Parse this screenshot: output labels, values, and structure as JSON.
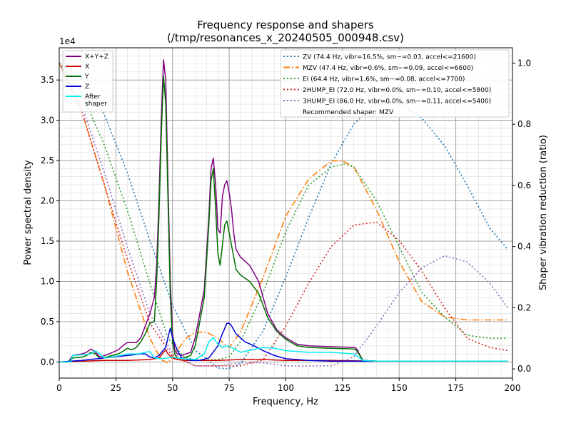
{
  "chart_data": {
    "type": "line",
    "title": "Frequency response and shapers",
    "subtitle": "(/tmp/resonances_x_20240505_000948.csv)",
    "xlabel": "Frequency, Hz",
    "ylabel": "Power spectral density",
    "y2label": "Shaper vibration reduction (ratio)",
    "y_offset_text": "1e4",
    "xlim": [
      0,
      200
    ],
    "ylim": [
      -0.2,
      3.9
    ],
    "y2lim": [
      -0.03,
      1.05
    ],
    "grid": true,
    "x_ticks": [
      0,
      25,
      50,
      75,
      100,
      125,
      150,
      175,
      200
    ],
    "y_ticks": [
      0.0,
      0.5,
      1.0,
      1.5,
      2.0,
      2.5,
      3.0,
      3.5
    ],
    "y2_ticks": [
      0.0,
      0.2,
      0.4,
      0.6,
      0.8,
      1.0
    ],
    "legend_left": {
      "placement": "top-left",
      "entries": [
        "X+Y+Z",
        "X",
        "Y",
        "Z",
        "After\nshaper"
      ]
    },
    "legend_right": {
      "placement": "top-right",
      "entries": [
        "ZV (74.4 Hz, vibr=16.5%, sm~=0.03, accel<=21600)",
        "MZV (47.4 Hz, vibr=0.6%, sm~=0.09, accel<=6600)",
        "EI (64.4 Hz, vibr=1.6%, sm~=0.08, accel<=7700)",
        "2HUMP_EI (72.0 Hz, vibr=0.0%, sm~=0.10, accel<=5800)",
        "3HUMP_EI (86.0 Hz, vibr=0.0%, sm~=0.11, accel<=5400)"
      ],
      "note": "Recommended shaper: MZV"
    },
    "colors": {
      "xyz": "#800080",
      "x": "#cc0000",
      "y": "#007000",
      "z": "#0000dd",
      "after": "#00eeee",
      "zv": "#1f77b4",
      "mzv": "#ff7f0e",
      "ei": "#2ca02c",
      "hump2": "#d62728",
      "hump3": "#9467bd"
    },
    "series": [
      {
        "name": "X+Y+Z",
        "key": "xyz",
        "axis": "left",
        "style": "solid",
        "x": [
          0,
          4,
          6,
          10,
          12,
          14,
          16,
          18,
          22,
          26,
          28,
          30,
          32,
          34,
          36,
          38,
          40,
          42,
          43,
          44,
          45,
          46,
          47,
          48,
          49,
          50,
          51,
          52,
          54,
          56,
          58,
          60,
          62,
          64,
          66,
          67,
          68,
          69,
          70,
          71,
          72,
          73,
          74,
          75,
          76,
          77,
          78,
          80,
          84,
          88,
          92,
          96,
          100,
          105,
          110,
          120,
          130,
          131,
          134,
          140,
          160,
          180,
          198
        ],
        "y": [
          0.0,
          0.0,
          0.08,
          0.1,
          0.12,
          0.16,
          0.12,
          0.06,
          0.1,
          0.15,
          0.2,
          0.24,
          0.24,
          0.24,
          0.3,
          0.45,
          0.6,
          0.8,
          1.2,
          2.0,
          3.0,
          3.75,
          3.5,
          2.2,
          1.0,
          0.35,
          0.15,
          0.1,
          0.08,
          0.1,
          0.12,
          0.3,
          0.6,
          0.9,
          1.8,
          2.4,
          2.53,
          2.2,
          1.65,
          1.6,
          2.05,
          2.2,
          2.25,
          2.1,
          1.9,
          1.6,
          1.4,
          1.3,
          1.2,
          1.0,
          0.6,
          0.4,
          0.3,
          0.22,
          0.2,
          0.19,
          0.18,
          0.17,
          0.02,
          0.01,
          0.01,
          0.01,
          0.01
        ]
      },
      {
        "name": "X",
        "key": "x",
        "axis": "left",
        "style": "solid",
        "x": [
          0,
          10,
          20,
          30,
          40,
          44,
          46,
          47,
          48,
          50,
          52,
          55,
          60,
          70,
          80,
          90,
          100,
          120,
          140,
          160,
          198
        ],
        "y": [
          0.0,
          0.01,
          0.02,
          0.02,
          0.03,
          0.05,
          0.12,
          0.15,
          0.1,
          0.05,
          0.03,
          0.02,
          0.02,
          0.02,
          0.03,
          0.03,
          0.02,
          0.02,
          0.01,
          0.01,
          0.01
        ]
      },
      {
        "name": "Y",
        "key": "y",
        "axis": "left",
        "style": "solid",
        "x": [
          0,
          4,
          6,
          10,
          12,
          14,
          16,
          18,
          22,
          26,
          28,
          30,
          32,
          34,
          36,
          38,
          40,
          42,
          43,
          44,
          45,
          46,
          47,
          48,
          49,
          50,
          51,
          52,
          54,
          56,
          58,
          60,
          62,
          64,
          66,
          67,
          68,
          69,
          70,
          71,
          72,
          73,
          74,
          75,
          76,
          77,
          78,
          80,
          84,
          88,
          92,
          96,
          100,
          105,
          110,
          120,
          130,
          131,
          134,
          140,
          160,
          180,
          198
        ],
        "y": [
          0.0,
          0.0,
          0.05,
          0.06,
          0.08,
          0.12,
          0.1,
          0.04,
          0.07,
          0.1,
          0.13,
          0.17,
          0.15,
          0.18,
          0.25,
          0.35,
          0.48,
          0.5,
          1.0,
          1.8,
          2.8,
          3.55,
          3.2,
          2.0,
          0.8,
          0.25,
          0.1,
          0.05,
          0.04,
          0.06,
          0.08,
          0.2,
          0.5,
          0.8,
          1.7,
          2.25,
          2.4,
          1.9,
          1.35,
          1.2,
          1.45,
          1.7,
          1.75,
          1.6,
          1.45,
          1.3,
          1.15,
          1.08,
          1.0,
          0.85,
          0.55,
          0.38,
          0.28,
          0.2,
          0.18,
          0.17,
          0.16,
          0.15,
          0.02,
          0.01,
          0.01,
          0.01,
          0.01
        ]
      },
      {
        "name": "Z",
        "key": "z",
        "axis": "left",
        "style": "solid",
        "x": [
          0,
          10,
          20,
          30,
          36,
          38,
          40,
          42,
          44,
          46,
          47,
          48,
          49,
          50,
          52,
          54,
          58,
          62,
          66,
          70,
          72,
          74,
          75,
          76,
          78,
          82,
          86,
          90,
          95,
          100,
          110,
          120,
          130,
          140,
          160,
          198
        ],
        "y": [
          0.0,
          0.02,
          0.05,
          0.08,
          0.1,
          0.1,
          0.06,
          0.05,
          0.08,
          0.15,
          0.18,
          0.3,
          0.42,
          0.3,
          0.15,
          0.05,
          0.02,
          0.02,
          0.05,
          0.2,
          0.35,
          0.48,
          0.48,
          0.45,
          0.35,
          0.25,
          0.2,
          0.14,
          0.08,
          0.04,
          0.02,
          0.01,
          0.01,
          0.01,
          0.01,
          0.01
        ]
      },
      {
        "name": "After\nshaper",
        "key": "after",
        "axis": "left",
        "style": "solid",
        "x": [
          0,
          5,
          6,
          10,
          14,
          16,
          20,
          25,
          30,
          35,
          38,
          40,
          42,
          45,
          48,
          50,
          52,
          55,
          60,
          64,
          66,
          68,
          70,
          72,
          74,
          76,
          78,
          80,
          85,
          90,
          95,
          100,
          110,
          120,
          130,
          134,
          140,
          160,
          198
        ],
        "y": [
          0.0,
          0.0,
          0.08,
          0.09,
          0.1,
          0.14,
          0.05,
          0.07,
          0.1,
          0.1,
          0.12,
          0.13,
          0.05,
          0.04,
          0.05,
          0.06,
          0.05,
          0.04,
          0.03,
          0.1,
          0.25,
          0.3,
          0.22,
          0.18,
          0.2,
          0.18,
          0.15,
          0.12,
          0.15,
          0.18,
          0.17,
          0.14,
          0.12,
          0.12,
          0.1,
          0.02,
          0.01,
          0.01,
          0.01
        ]
      },
      {
        "name": "ZV (74.4 Hz, vibr=16.5%, sm~=0.03, accel<=21600)",
        "key": "zv",
        "axis": "right",
        "style": "dotted",
        "x": [
          0,
          10,
          20,
          30,
          40,
          50,
          60,
          70,
          74.4,
          80,
          90,
          100,
          110,
          120,
          130,
          140,
          148.8,
          160,
          170,
          180,
          190,
          198
        ],
        "y": [
          1.0,
          0.956,
          0.83,
          0.642,
          0.42,
          0.208,
          0.061,
          0.003,
          0.0,
          0.017,
          0.125,
          0.301,
          0.494,
          0.671,
          0.801,
          0.868,
          0.874,
          0.82,
          0.73,
          0.6,
          0.46,
          0.39
        ]
      },
      {
        "name": "MZV (47.4 Hz, vibr=0.6%, sm~=0.09, accel<=6600)",
        "key": "mzv",
        "axis": "right",
        "style": "dashdot",
        "x": [
          0,
          10,
          20,
          30,
          40,
          45,
          48,
          52,
          56,
          60,
          65,
          70,
          75,
          80,
          90,
          100,
          110,
          120,
          125,
          130,
          140,
          150,
          160,
          170,
          180,
          190,
          198
        ],
        "y": [
          1.0,
          0.84,
          0.6,
          0.32,
          0.1,
          0.03,
          0.02,
          0.06,
          0.1,
          0.12,
          0.12,
          0.1,
          0.07,
          0.12,
          0.3,
          0.5,
          0.62,
          0.68,
          0.68,
          0.66,
          0.52,
          0.35,
          0.22,
          0.17,
          0.16,
          0.16,
          0.16
        ]
      },
      {
        "name": "EI (64.4 Hz, vibr=1.6%, sm~=0.08, accel<=7700)",
        "key": "ei",
        "axis": "right",
        "style": "dotted",
        "x": [
          0,
          10,
          20,
          30,
          40,
          48,
          55,
          60,
          64,
          70,
          75,
          80,
          90,
          100,
          110,
          120,
          126,
          130,
          140,
          150,
          160,
          170,
          180,
          190,
          198
        ],
        "y": [
          1.0,
          0.9,
          0.73,
          0.52,
          0.28,
          0.1,
          0.04,
          0.03,
          0.03,
          0.03,
          0.04,
          0.09,
          0.25,
          0.45,
          0.6,
          0.66,
          0.67,
          0.66,
          0.55,
          0.4,
          0.25,
          0.17,
          0.11,
          0.1,
          0.1
        ]
      },
      {
        "name": "2HUMP_EI (72.0 Hz, vibr=0.0%, sm~=0.10, accel<=5800)",
        "key": "hump2",
        "axis": "right",
        "style": "dotted",
        "x": [
          0,
          10,
          20,
          30,
          40,
          50,
          60,
          70,
          80,
          90,
          100,
          110,
          120,
          130,
          140,
          150,
          160,
          170,
          180,
          190,
          198
        ],
        "y": [
          1.0,
          0.84,
          0.6,
          0.36,
          0.15,
          0.04,
          0.01,
          0.01,
          0.01,
          0.03,
          0.14,
          0.28,
          0.4,
          0.47,
          0.48,
          0.42,
          0.32,
          0.2,
          0.1,
          0.07,
          0.06
        ]
      },
      {
        "name": "3HUMP_EI (86.0 Hz, vibr=0.0%, sm~=0.11, accel<=5400)",
        "key": "hump3",
        "axis": "right",
        "style": "dotted",
        "x": [
          0,
          10,
          20,
          30,
          40,
          50,
          60,
          70,
          80,
          90,
          100,
          110,
          120,
          130,
          140,
          150,
          160,
          170,
          180,
          190,
          198
        ],
        "y": [
          1.0,
          0.86,
          0.64,
          0.4,
          0.18,
          0.05,
          0.01,
          0.01,
          0.02,
          0.02,
          0.01,
          0.01,
          0.01,
          0.04,
          0.14,
          0.25,
          0.33,
          0.37,
          0.35,
          0.28,
          0.2
        ]
      }
    ]
  }
}
